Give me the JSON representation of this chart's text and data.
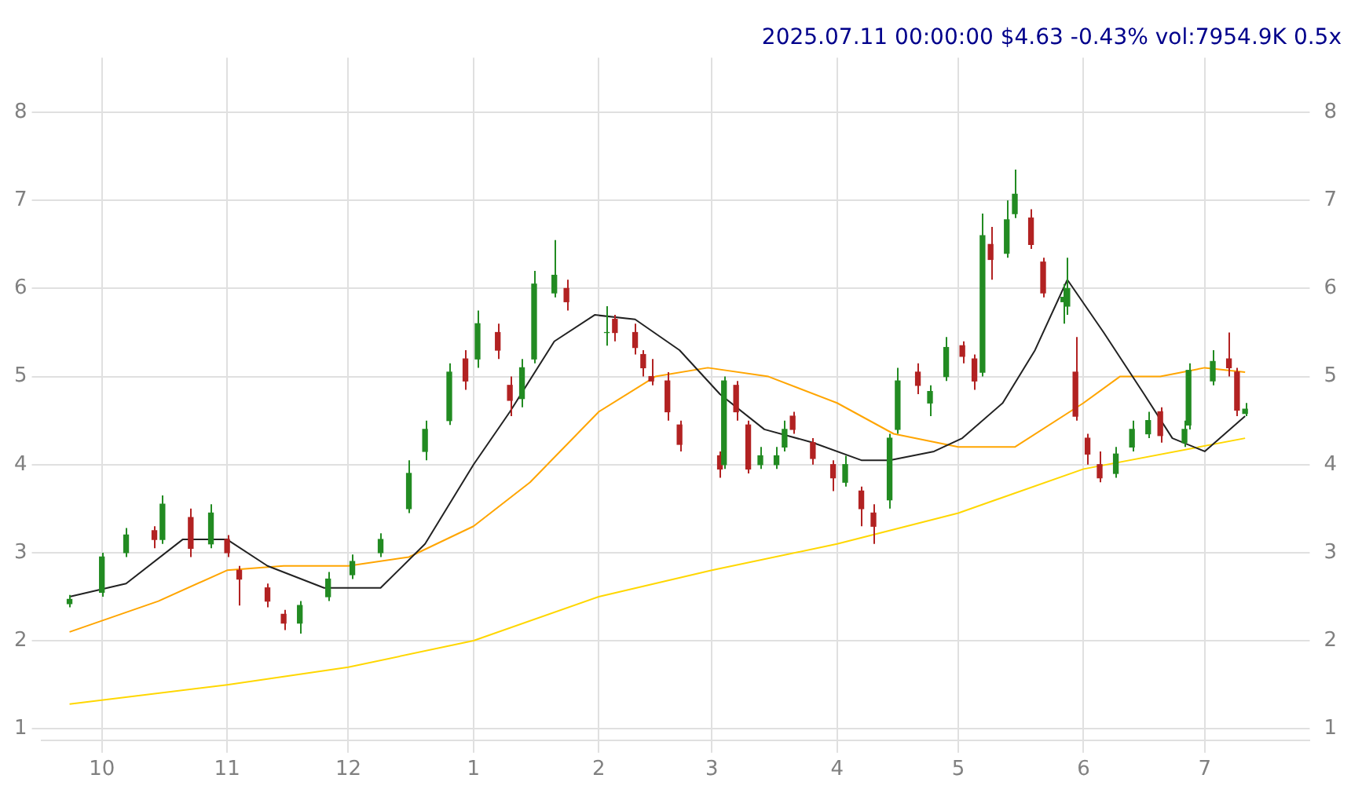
{
  "chart_data": {
    "type": "candlestick",
    "title": "2025.07.11 00:00:00 $4.63 -0.43% vol:7954.9K 0.5x",
    "x": [
      "2024-09-23",
      "2024-10-01",
      "2024-10-07",
      "2024-10-14",
      "2024-10-16",
      "2024-10-23",
      "2024-10-28",
      "2024-11-01",
      "2024-11-04",
      "2024-11-11",
      "2024-11-15",
      "2024-11-19",
      "2024-11-26",
      "2024-12-02",
      "2024-12-09",
      "2024-12-16",
      "2024-12-20",
      "2024-12-26",
      "2024-12-30",
      "2025-01-02",
      "2025-01-07",
      "2025-01-10",
      "2025-01-13",
      "2025-01-16",
      "2025-01-21",
      "2025-01-24",
      "2025-02-03",
      "2025-02-05",
      "2025-02-10",
      "2025-02-12",
      "2025-02-14",
      "2025-02-18",
      "2025-02-21",
      "2025-03-03",
      "2025-03-04",
      "2025-03-07",
      "2025-03-10",
      "2025-03-13",
      "2025-03-17",
      "2025-03-19",
      "2025-03-21",
      "2025-03-26",
      "2025-03-31",
      "2025-04-03",
      "2025-04-07",
      "2025-04-10",
      "2025-04-14",
      "2025-04-16",
      "2025-04-21",
      "2025-04-24",
      "2025-04-28",
      "2025-05-02",
      "2025-05-05",
      "2025-05-07",
      "2025-05-09",
      "2025-05-13",
      "2025-05-15",
      "2025-05-19",
      "2025-05-22",
      "2025-05-27",
      "2025-05-28",
      "2025-05-30",
      "2025-06-02",
      "2025-06-05",
      "2025-06-09",
      "2025-06-13",
      "2025-06-17",
      "2025-06-20",
      "2025-06-26",
      "2025-06-27",
      "2025-07-03",
      "2025-07-07",
      "2025-07-09",
      "2025-07-11"
    ],
    "ohlc": [
      [
        2.42,
        2.52,
        2.38,
        2.47
      ],
      [
        2.55,
        3.0,
        2.5,
        2.95
      ],
      [
        3.0,
        3.28,
        2.95,
        3.2
      ],
      [
        3.25,
        3.3,
        3.05,
        3.15
      ],
      [
        3.15,
        3.65,
        3.1,
        3.55
      ],
      [
        3.4,
        3.5,
        2.95,
        3.05
      ],
      [
        3.1,
        3.55,
        3.05,
        3.45
      ],
      [
        3.15,
        3.2,
        2.95,
        3.0
      ],
      [
        2.8,
        2.85,
        2.4,
        2.7
      ],
      [
        2.6,
        2.65,
        2.38,
        2.45
      ],
      [
        2.3,
        2.35,
        2.12,
        2.2
      ],
      [
        2.2,
        2.45,
        2.08,
        2.4
      ],
      [
        2.5,
        2.78,
        2.45,
        2.7
      ],
      [
        2.75,
        2.98,
        2.7,
        2.9
      ],
      [
        3.0,
        3.22,
        2.95,
        3.15
      ],
      [
        3.5,
        4.05,
        3.45,
        3.9
      ],
      [
        4.15,
        4.5,
        4.05,
        4.4
      ],
      [
        4.5,
        5.15,
        4.45,
        5.05
      ],
      [
        5.2,
        5.3,
        4.85,
        4.95
      ],
      [
        5.2,
        5.75,
        5.1,
        5.6
      ],
      [
        5.5,
        5.6,
        5.2,
        5.3
      ],
      [
        4.9,
        5.0,
        4.55,
        4.73
      ],
      [
        4.75,
        5.2,
        4.65,
        5.1
      ],
      [
        5.2,
        6.2,
        5.15,
        6.05
      ],
      [
        5.95,
        6.55,
        5.9,
        6.15
      ],
      [
        6.0,
        6.1,
        5.75,
        5.85
      ],
      [
        5.5,
        5.8,
        5.35,
        5.5
      ],
      [
        5.65,
        5.7,
        5.4,
        5.5
      ],
      [
        5.5,
        5.6,
        5.25,
        5.33
      ],
      [
        5.25,
        5.3,
        5.0,
        5.1
      ],
      [
        5.0,
        5.2,
        4.9,
        4.95
      ],
      [
        4.95,
        5.05,
        4.5,
        4.6
      ],
      [
        4.45,
        4.5,
        4.15,
        4.23
      ],
      [
        4.1,
        4.15,
        3.85,
        3.95
      ],
      [
        4.0,
        5.0,
        3.95,
        4.95
      ],
      [
        4.9,
        4.95,
        4.5,
        4.6
      ],
      [
        4.45,
        4.5,
        3.9,
        3.95
      ],
      [
        4.0,
        4.2,
        3.95,
        4.1
      ],
      [
        4.0,
        4.2,
        3.95,
        4.1
      ],
      [
        4.2,
        4.5,
        4.15,
        4.4
      ],
      [
        4.55,
        4.6,
        4.35,
        4.4
      ],
      [
        4.25,
        4.3,
        4.0,
        4.07
      ],
      [
        4.0,
        4.05,
        3.7,
        3.85
      ],
      [
        3.8,
        4.1,
        3.75,
        4.0
      ],
      [
        3.7,
        3.75,
        3.3,
        3.5
      ],
      [
        3.45,
        3.55,
        3.1,
        3.3
      ],
      [
        3.6,
        4.35,
        3.5,
        4.3
      ],
      [
        4.4,
        5.1,
        4.35,
        4.95
      ],
      [
        5.05,
        5.15,
        4.8,
        4.9
      ],
      [
        4.7,
        4.9,
        4.55,
        4.83
      ],
      [
        5.0,
        5.45,
        4.95,
        5.33
      ],
      [
        5.35,
        5.4,
        5.15,
        5.23
      ],
      [
        5.2,
        5.25,
        4.85,
        4.95
      ],
      [
        5.05,
        6.85,
        5.0,
        6.6
      ],
      [
        6.5,
        6.7,
        6.1,
        6.33
      ],
      [
        6.4,
        7.0,
        6.35,
        6.78
      ],
      [
        6.85,
        7.35,
        6.8,
        7.07
      ],
      [
        6.8,
        6.9,
        6.45,
        6.5
      ],
      [
        6.3,
        6.35,
        5.9,
        5.95
      ],
      [
        5.85,
        6.05,
        5.6,
        5.9
      ],
      [
        5.8,
        6.35,
        5.7,
        6.0
      ],
      [
        5.05,
        5.45,
        4.5,
        4.55
      ],
      [
        4.3,
        4.35,
        4.0,
        4.12
      ],
      [
        4.0,
        4.15,
        3.8,
        3.85
      ],
      [
        3.9,
        4.2,
        3.85,
        4.12
      ],
      [
        4.2,
        4.5,
        4.15,
        4.4
      ],
      [
        4.35,
        4.6,
        4.3,
        4.5
      ],
      [
        4.6,
        4.65,
        4.25,
        4.33
      ],
      [
        4.25,
        4.5,
        4.2,
        4.4
      ],
      [
        4.45,
        5.15,
        4.4,
        5.07
      ],
      [
        4.95,
        5.3,
        4.9,
        5.17
      ],
      [
        5.2,
        5.5,
        5.0,
        5.1
      ],
      [
        5.05,
        5.1,
        4.55,
        4.62
      ],
      [
        4.58,
        4.7,
        4.55,
        4.63
      ]
    ],
    "colors": [
      "#228b22",
      "#228b22",
      "#228b22",
      "#b22222",
      "#228b22",
      "#b22222",
      "#228b22",
      "#b22222",
      "#b22222",
      "#b22222",
      "#b22222",
      "#228b22",
      "#228b22",
      "#228b22",
      "#228b22",
      "#228b22",
      "#228b22",
      "#228b22",
      "#b22222",
      "#228b22",
      "#b22222",
      "#b22222",
      "#228b22",
      "#228b22",
      "#228b22",
      "#b22222",
      "#228b22",
      "#b22222",
      "#b22222",
      "#b22222",
      "#b22222",
      "#b22222",
      "#b22222",
      "#b22222",
      "#228b22",
      "#b22222",
      "#b22222",
      "#228b22",
      "#228b22",
      "#228b22",
      "#b22222",
      "#b22222",
      "#b22222",
      "#228b22",
      "#b22222",
      "#b22222",
      "#228b22",
      "#228b22",
      "#b22222",
      "#228b22",
      "#228b22",
      "#b22222",
      "#b22222",
      "#228b22",
      "#b22222",
      "#228b22",
      "#228b22",
      "#b22222",
      "#b22222",
      "#228b22",
      "#228b22",
      "#b22222",
      "#b22222",
      "#b22222",
      "#228b22",
      "#228b22",
      "#228b22",
      "#b22222",
      "#228b22",
      "#228b22",
      "#228b22",
      "#b22222",
      "#b22222",
      "#228b22"
    ],
    "series": [
      {
        "type": "line",
        "color": "#222222",
        "x": [
          "2024-09-23",
          "2024-10-07",
          "2024-10-21",
          "2024-11-01",
          "2024-11-11",
          "2024-11-25",
          "2024-12-09",
          "2024-12-20",
          "2025-01-01",
          "2025-01-10",
          "2025-01-21",
          "2025-01-31",
          "2025-02-10",
          "2025-02-21",
          "2025-03-03",
          "2025-03-14",
          "2025-03-26",
          "2025-04-07",
          "2025-04-14",
          "2025-04-25",
          "2025-05-02",
          "2025-05-12",
          "2025-05-20",
          "2025-05-28",
          "2025-06-06",
          "2025-06-16",
          "2025-06-23",
          "2025-07-01",
          "2025-07-11"
        ],
        "values": [
          2.5,
          2.65,
          3.15,
          3.15,
          2.85,
          2.6,
          2.6,
          3.1,
          4.0,
          4.6,
          5.4,
          5.7,
          5.65,
          5.3,
          4.8,
          4.4,
          4.25,
          4.05,
          4.05,
          4.15,
          4.3,
          4.7,
          5.3,
          6.1,
          5.5,
          4.8,
          4.3,
          4.15,
          4.55
        ]
      },
      {
        "type": "line",
        "color": "#ffa500",
        "x": [
          "2024-09-23",
          "2024-10-15",
          "2024-11-01",
          "2024-11-15",
          "2024-12-01",
          "2024-12-16",
          "2025-01-01",
          "2025-01-15",
          "2025-02-01",
          "2025-02-15",
          "2025-02-28",
          "2025-03-15",
          "2025-04-01",
          "2025-04-15",
          "2025-05-01",
          "2025-05-15",
          "2025-06-01",
          "2025-06-10",
          "2025-06-20",
          "2025-07-01",
          "2025-07-11"
        ],
        "values": [
          2.1,
          2.45,
          2.8,
          2.85,
          2.85,
          2.95,
          3.3,
          3.8,
          4.6,
          5.0,
          5.1,
          5.0,
          4.7,
          4.35,
          4.2,
          4.2,
          4.7,
          5.0,
          5.0,
          5.1,
          5.05
        ]
      },
      {
        "type": "line",
        "color": "#ffd700",
        "x": [
          "2024-09-23",
          "2024-11-01",
          "2024-12-01",
          "2025-01-01",
          "2025-02-01",
          "2025-03-01",
          "2025-04-01",
          "2025-05-01",
          "2025-06-01",
          "2025-07-11"
        ],
        "values": [
          1.28,
          1.5,
          1.7,
          2.0,
          2.5,
          2.8,
          3.1,
          3.45,
          3.95,
          4.3
        ]
      }
    ],
    "xlim": [
      "2024-09-16",
      "2025-07-27"
    ],
    "xticks": [
      {
        "value": "2024-10-01",
        "label": "10"
      },
      {
        "value": "2024-11-01",
        "label": "11"
      },
      {
        "value": "2024-12-01",
        "label": "12"
      },
      {
        "value": "2025-01-01",
        "label": "1"
      },
      {
        "value": "2025-02-01",
        "label": "2"
      },
      {
        "value": "2025-03-01",
        "label": "3"
      },
      {
        "value": "2025-04-01",
        "label": "4"
      },
      {
        "value": "2025-05-01",
        "label": "5"
      },
      {
        "value": "2025-06-01",
        "label": "6"
      },
      {
        "value": "2025-07-01",
        "label": "7"
      }
    ],
    "ylim": [
      0.87,
      8.62
    ],
    "yticks": [
      1,
      2,
      3,
      4,
      5,
      6,
      7,
      8
    ],
    "y2lim": [
      0.87,
      8.62
    ],
    "y2ticks": [
      1,
      2,
      3,
      4,
      5,
      6,
      7,
      8
    ],
    "grid": true,
    "legend": false
  }
}
